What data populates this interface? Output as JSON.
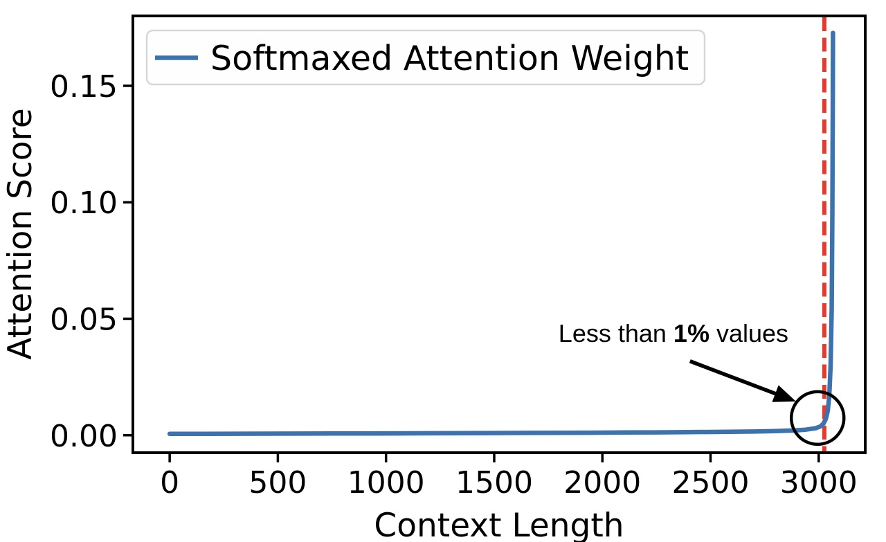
{
  "chart_data": {
    "type": "line",
    "title": "",
    "xlabel": "Context Length",
    "ylabel": "Attention Score",
    "xlim": [
      -170,
      3215
    ],
    "ylim": [
      -0.0075,
      0.18
    ],
    "x_ticks": [
      0,
      500,
      1000,
      1500,
      2000,
      2500,
      3000
    ],
    "y_ticks": [
      0.0,
      0.05,
      0.1,
      0.15
    ],
    "grid": false,
    "legend": {
      "position": "upper-left",
      "entries": [
        {
          "label": "Softmaxed Attention Weight",
          "color": "#3c73af"
        }
      ]
    },
    "series": [
      {
        "name": "Softmaxed Attention Weight",
        "color": "#3c73af",
        "x": [
          0,
          150,
          300,
          450,
          600,
          750,
          900,
          1050,
          1200,
          1350,
          1500,
          1650,
          1800,
          1950,
          2100,
          2250,
          2400,
          2550,
          2700,
          2800,
          2880,
          2940,
          2985,
          3008,
          3022,
          3033,
          3042,
          3049,
          3055,
          3060,
          3063,
          3065,
          3066
        ],
        "y": [
          0.0006,
          0.00062,
          0.00065,
          0.00068,
          0.0007,
          0.00072,
          0.00075,
          0.0008,
          0.00085,
          0.0009,
          0.00095,
          0.001,
          0.00105,
          0.0011,
          0.00118,
          0.00125,
          0.00135,
          0.00145,
          0.0016,
          0.0018,
          0.002,
          0.0024,
          0.003,
          0.0038,
          0.005,
          0.007,
          0.0105,
          0.017,
          0.03,
          0.055,
          0.095,
          0.14,
          0.1727
        ]
      }
    ],
    "vline": {
      "x": 3026,
      "color": "#e8392c",
      "style": "dashed"
    },
    "annotations": {
      "callout": {
        "text_prefix": "Less than ",
        "text_bold": "1%",
        "text_suffix": " values",
        "text_anchor": [
          2860,
          0.04
        ],
        "arrow_tail": [
          2405,
          0.0318
        ],
        "arrow_tip": [
          2895,
          0.0145
        ],
        "circle_center": [
          2995,
          0.0074
        ],
        "circle_radius_px": 38
      }
    }
  }
}
